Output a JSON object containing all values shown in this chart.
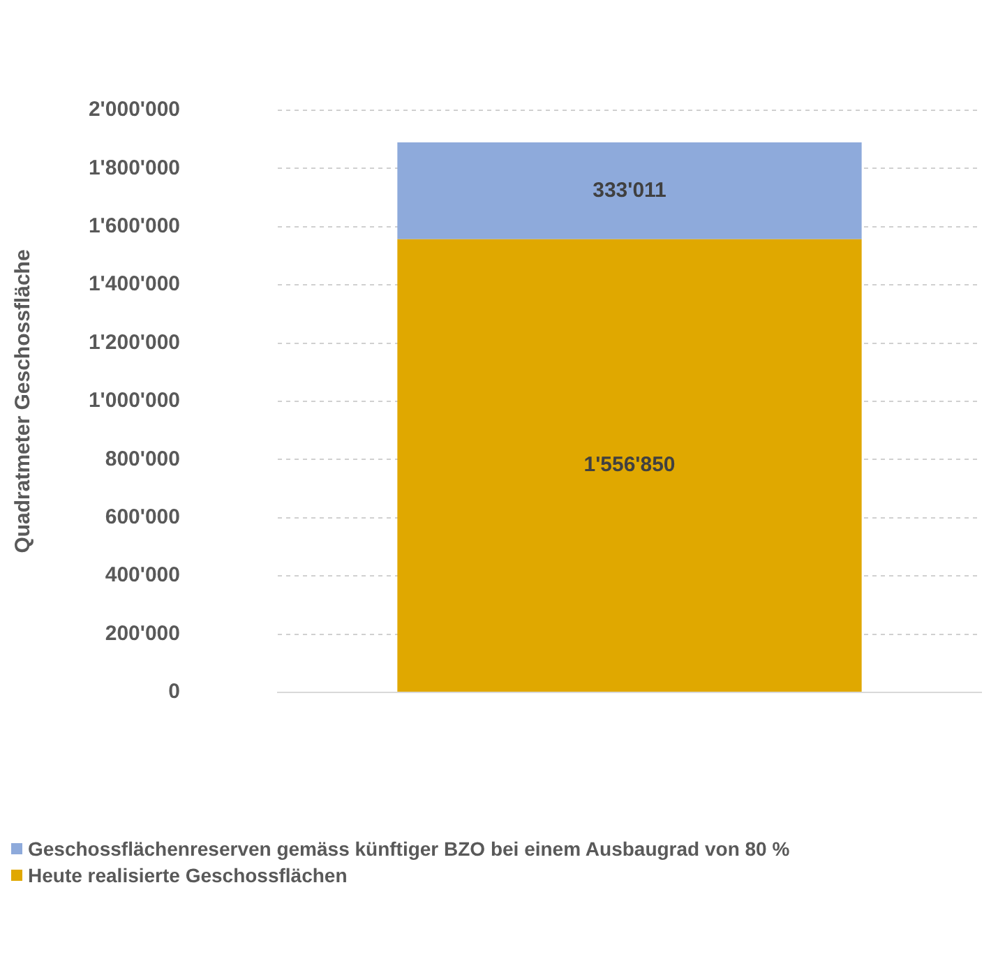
{
  "chart_data": {
    "type": "bar",
    "stacked": true,
    "ylabel": "Quadratmeter Geschossfläche",
    "categories": [
      null
    ],
    "series": [
      {
        "name": "Heute realisierte Geschossflächen",
        "color": "#e0a800",
        "values": [
          1556850
        ],
        "value_labels": [
          "1'556'850"
        ]
      },
      {
        "name": "Geschossflächenreserven gemäss künftiger BZO bei einem Ausbaugrad von 80 %",
        "color": "#8eaadb",
        "values": [
          333011
        ],
        "value_labels": [
          "333'011"
        ]
      }
    ],
    "ylim": [
      0,
      2000000
    ],
    "yticks": [
      {
        "value": 0,
        "label": "0"
      },
      {
        "value": 200000,
        "label": "200'000"
      },
      {
        "value": 400000,
        "label": "400'000"
      },
      {
        "value": 600000,
        "label": "600'000"
      },
      {
        "value": 800000,
        "label": "800'000"
      },
      {
        "value": 1000000,
        "label": "1'000'000"
      },
      {
        "value": 1200000,
        "label": "1'200'000"
      },
      {
        "value": 1400000,
        "label": "1'400'000"
      },
      {
        "value": 1600000,
        "label": "1'600'000"
      },
      {
        "value": 1800000,
        "label": "1'800'000"
      },
      {
        "value": 2000000,
        "label": "2'000'000"
      }
    ],
    "grid": "y",
    "legend": "bottom left"
  }
}
